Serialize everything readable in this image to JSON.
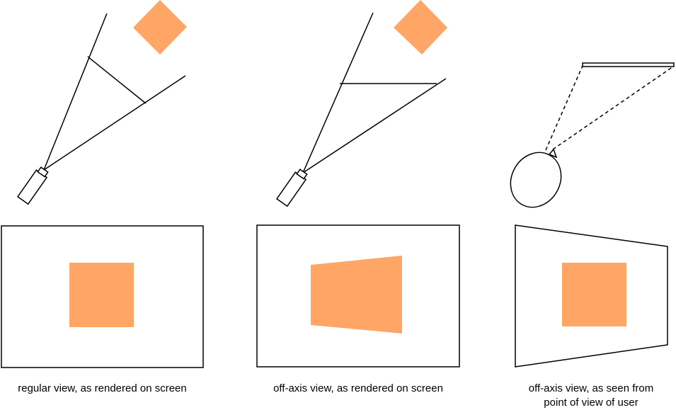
{
  "colors": {
    "object": "#ffa566",
    "stroke": "#000000",
    "background": "#ffffff"
  },
  "panels": [
    {
      "caption_lines": [
        "regular view, as rendered on screen"
      ]
    },
    {
      "caption_lines": [
        "off-axis view, as rendered on screen"
      ]
    },
    {
      "caption_lines": [
        "off-axis view, as seen from",
        "point of view of user"
      ]
    }
  ]
}
